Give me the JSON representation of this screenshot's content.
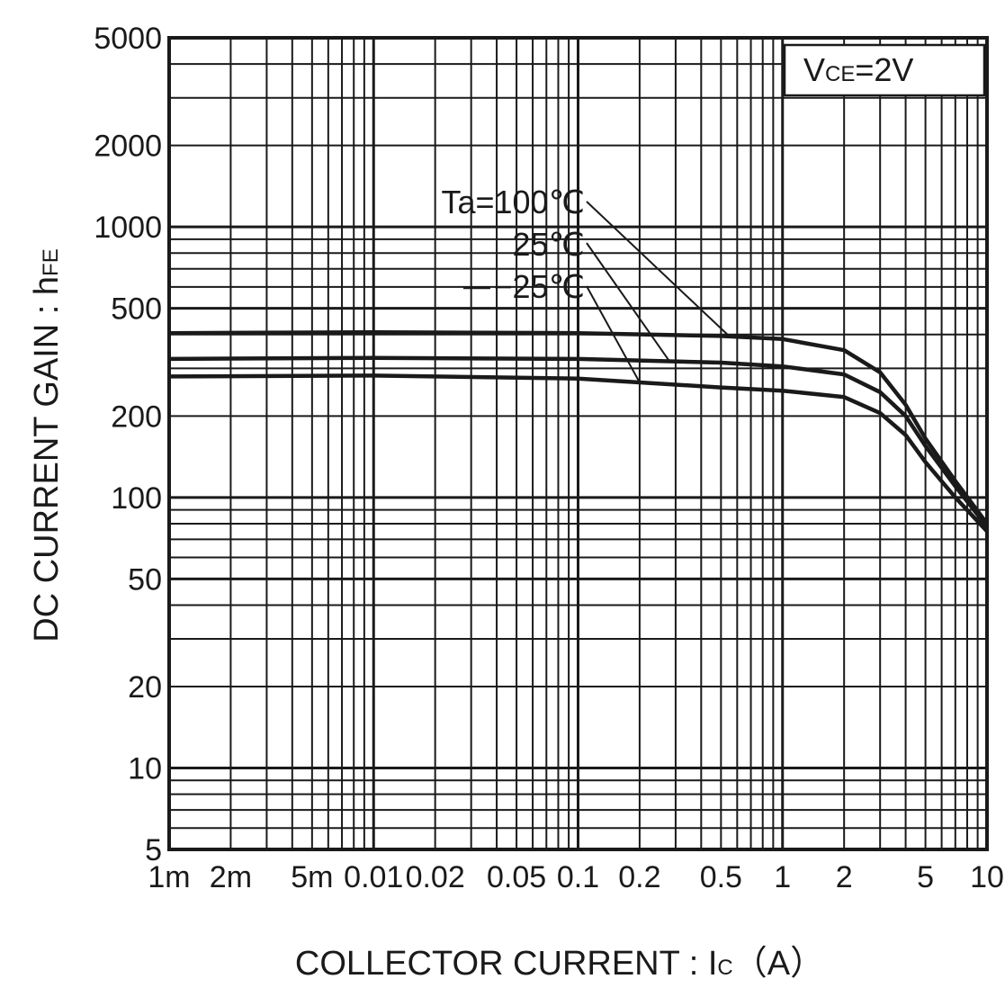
{
  "chart_data": {
    "type": "line",
    "x_scale": "log",
    "y_scale": "log",
    "xlim": [
      0.001,
      10
    ],
    "ylim": [
      5,
      5000
    ],
    "grid": true,
    "xlabel": {
      "main": "COLLECTOR CURRENT : I",
      "sub": "C",
      "unit": "（A）"
    },
    "ylabel": {
      "main": "DC CURRENT GAIN : h",
      "sub": "FE"
    },
    "x_ticks": [
      {
        "value": 0.001,
        "label": "1m"
      },
      {
        "value": 0.002,
        "label": "2m"
      },
      {
        "value": 0.005,
        "label": "5m"
      },
      {
        "value": 0.01,
        "label": "0.01"
      },
      {
        "value": 0.02,
        "label": "0.02"
      },
      {
        "value": 0.05,
        "label": "0.05"
      },
      {
        "value": 0.1,
        "label": "0.1"
      },
      {
        "value": 0.2,
        "label": "0.2"
      },
      {
        "value": 0.5,
        "label": "0.5"
      },
      {
        "value": 1,
        "label": "1"
      },
      {
        "value": 2,
        "label": "2"
      },
      {
        "value": 5,
        "label": "5"
      },
      {
        "value": 10,
        "label": "10"
      }
    ],
    "y_ticks": [
      {
        "value": 5,
        "label": "5"
      },
      {
        "value": 10,
        "label": "10"
      },
      {
        "value": 20,
        "label": "20"
      },
      {
        "value": 50,
        "label": "50"
      },
      {
        "value": 100,
        "label": "100"
      },
      {
        "value": 200,
        "label": "200"
      },
      {
        "value": 500,
        "label": "500"
      },
      {
        "value": 1000,
        "label": "1000"
      },
      {
        "value": 2000,
        "label": "2000"
      },
      {
        "value": 5000,
        "label": "5000"
      }
    ],
    "condition_label": {
      "prefix": "V",
      "sub": "CE",
      "suffix": "=2V"
    },
    "series": [
      {
        "name": "Ta=100℃",
        "points": [
          [
            0.001,
            405
          ],
          [
            0.01,
            408
          ],
          [
            0.1,
            405
          ],
          [
            0.5,
            395
          ],
          [
            1,
            385
          ],
          [
            2,
            350
          ],
          [
            3,
            290
          ],
          [
            4,
            220
          ],
          [
            5,
            165
          ],
          [
            7,
            115
          ],
          [
            10,
            80
          ]
        ]
      },
      {
        "name": "25℃",
        "points": [
          [
            0.001,
            325
          ],
          [
            0.01,
            328
          ],
          [
            0.1,
            325
          ],
          [
            0.5,
            315
          ],
          [
            1,
            305
          ],
          [
            2,
            285
          ],
          [
            3,
            245
          ],
          [
            4,
            200
          ],
          [
            5,
            155
          ],
          [
            7,
            110
          ],
          [
            10,
            78
          ]
        ]
      },
      {
        "name": "−25℃",
        "points": [
          [
            0.001,
            280
          ],
          [
            0.01,
            282
          ],
          [
            0.1,
            275
          ],
          [
            0.5,
            255
          ],
          [
            1,
            248
          ],
          [
            2,
            235
          ],
          [
            3,
            205
          ],
          [
            4,
            170
          ],
          [
            5,
            135
          ],
          [
            7,
            100
          ],
          [
            10,
            75
          ]
        ]
      }
    ]
  }
}
